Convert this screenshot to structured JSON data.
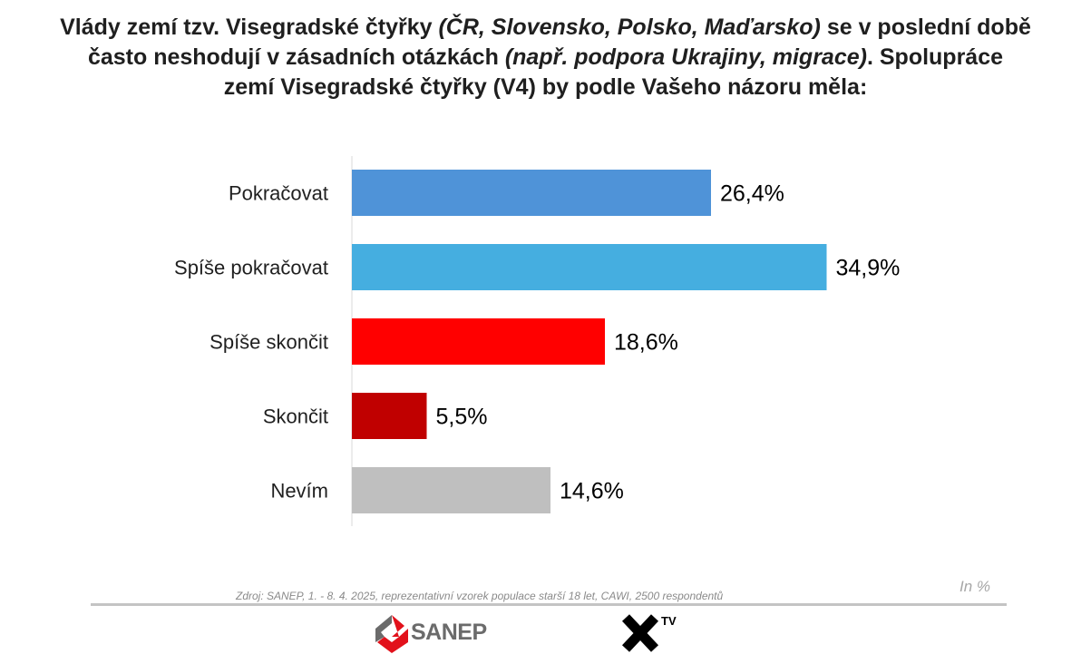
{
  "title": {
    "line1": [
      {
        "t": "Vlády zemí tzv. Visegradské čtyřky ",
        "i": false
      },
      {
        "t": "(ČR, Slovensko, Polsko, Maďarsko)",
        "i": true
      },
      {
        "t": " se v poslední době",
        "i": false
      }
    ],
    "line2": [
      {
        "t": "často neshodují v zásadních otázkách ",
        "i": false
      },
      {
        "t": "(např. podpora Ukrajiny, migrace)",
        "i": true
      },
      {
        "t": ". Spolupráce",
        "i": false
      }
    ],
    "line3": [
      {
        "t": "zemí Visegradské čtyřky (V4) by podle Vašeho názoru měla:",
        "i": false
      }
    ]
  },
  "chart_data": {
    "type": "bar",
    "orientation": "horizontal",
    "categories": [
      "Pokračovat",
      "Spíše pokračovat",
      "Spíše skončit",
      "Skončit",
      "Nevím"
    ],
    "values": [
      26.4,
      34.9,
      18.6,
      5.5,
      14.6
    ],
    "value_labels": [
      "26,4%",
      "34,9%",
      "18,6%",
      "5,5%",
      "14,6%"
    ],
    "colors": [
      "#4f93d8",
      "#45aee0",
      "#ff0000",
      "#c00000",
      "#bfbfbf"
    ],
    "xlim": [
      0,
      40
    ],
    "grid": false,
    "legend": "none",
    "unit_note": "In %"
  },
  "footer": {
    "source": "Zdroj: SANEP, 1. - 8. 4. 2025, reprezentativní vzorek populace starší 18 let, CAWI, 2500 respondentů",
    "sanep_logo_text": "SANEP",
    "xtv_logo_text": "TV"
  },
  "icons": {
    "sanep": "sanep-logo-icon",
    "xtv": "x-tv-logo-icon"
  }
}
